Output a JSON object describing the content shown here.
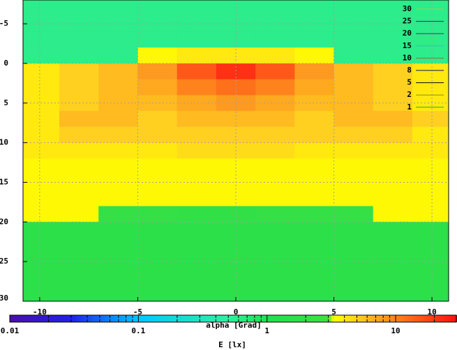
{
  "chart_data": {
    "type": "heatmap",
    "xlabel": "alpha [Grad]",
    "cblabel": "E [lx]",
    "x": [
      -10,
      -8,
      -6,
      -4,
      -2,
      0,
      2,
      4,
      6,
      8,
      10
    ],
    "y": [
      -7,
      -5,
      -3,
      -1,
      1,
      3,
      5,
      7,
      9,
      11,
      13,
      15,
      17,
      19,
      21,
      23,
      25,
      27,
      29
    ],
    "z": [
      [
        0.6,
        0.6,
        0.6,
        0.6,
        0.6,
        0.6,
        0.6,
        0.6,
        0.6,
        0.6,
        0.6
      ],
      [
        0.6,
        0.6,
        0.6,
        0.6,
        0.6,
        0.6,
        0.6,
        0.6,
        0.6,
        0.6,
        0.6
      ],
      [
        0.6,
        0.6,
        0.6,
        0.6,
        0.6,
        0.6,
        0.6,
        0.6,
        0.6,
        0.6,
        0.6
      ],
      [
        0.6,
        0.6,
        0.6,
        3.5,
        4,
        4,
        4,
        3.5,
        0.6,
        0.6,
        0.6
      ],
      [
        4,
        5,
        6,
        8,
        15,
        22,
        15,
        8,
        6,
        5,
        4
      ],
      [
        4,
        5,
        6,
        7,
        10,
        12,
        10,
        7,
        6,
        5,
        4
      ],
      [
        4,
        5,
        6,
        6,
        7,
        8,
        7,
        6,
        6,
        5,
        4
      ],
      [
        4,
        6,
        6,
        5,
        6,
        6,
        6,
        5,
        6,
        6,
        5
      ],
      [
        4,
        5,
        5,
        5,
        5,
        5,
        5,
        5,
        5,
        5,
        4
      ],
      [
        4,
        4,
        4,
        4,
        4.5,
        4.5,
        4.5,
        4,
        4,
        4,
        4
      ],
      [
        3.5,
        3.5,
        3.5,
        3.5,
        3.5,
        3.5,
        3.5,
        3.5,
        3.5,
        3.5,
        3.5
      ],
      [
        3.5,
        3.5,
        3.5,
        3.5,
        3.5,
        3.5,
        3.5,
        3.5,
        3.5,
        3.5,
        3.5
      ],
      [
        3.5,
        3.5,
        3.5,
        3.5,
        3.5,
        3.5,
        3.5,
        3.5,
        3.5,
        3.5,
        3.5
      ],
      [
        3.5,
        3.5,
        2,
        2,
        1.8,
        1.8,
        2,
        2,
        2,
        3.5,
        3.5
      ],
      [
        1.5,
        1.5,
        1.5,
        1.5,
        1.5,
        1.5,
        1.5,
        1.5,
        1.5,
        1.5,
        1.5
      ],
      [
        1.5,
        1.5,
        1.5,
        1.5,
        1.5,
        1.5,
        1.5,
        1.5,
        1.5,
        1.5,
        1.5
      ],
      [
        1.5,
        1.5,
        1.5,
        1.5,
        1.5,
        1.5,
        1.5,
        1.5,
        1.5,
        1.5,
        1.5
      ],
      [
        1.5,
        1.5,
        1.5,
        1.5,
        1.5,
        1.5,
        1.5,
        1.5,
        1.5,
        1.5,
        1.5
      ],
      [
        1.5,
        1.5,
        1.5,
        1.5,
        1.5,
        1.5,
        1.5,
        1.5,
        1.5,
        1.5,
        1.5
      ]
    ],
    "xlim": [
      -10.85,
      10.85
    ],
    "xticks": [
      -10,
      -5,
      0,
      5,
      10
    ],
    "ylim": [
      -8,
      30
    ],
    "yticks": [
      -5,
      0,
      5,
      10,
      15,
      20,
      25,
      30
    ],
    "grid": true,
    "cblim": [
      0.01,
      30
    ],
    "cbticks": [
      0.01,
      0.1,
      1,
      10
    ],
    "cbminorticks": [
      0.02,
      0.03,
      0.04,
      0.05,
      0.06,
      0.07,
      0.08,
      0.09,
      0.2,
      0.3,
      0.4,
      0.5,
      0.6,
      0.7,
      0.8,
      0.9,
      2,
      3,
      4,
      5,
      6,
      7,
      8,
      9,
      20
    ],
    "cblog": true,
    "palette": [
      {
        "value": 0.01,
        "color": "#4a10a8"
      },
      {
        "value": 0.03,
        "color": "#2020e8"
      },
      {
        "value": 0.1,
        "color": "#00c8ff"
      },
      {
        "value": 0.5,
        "color": "#30f0a0"
      },
      {
        "value": 1,
        "color": "#20e050"
      },
      {
        "value": 3,
        "color": "#40e040"
      },
      {
        "value": 3.3,
        "color": "#ffff00"
      },
      {
        "value": 5,
        "color": "#ffd020"
      },
      {
        "value": 8,
        "color": "#ff9a20"
      },
      {
        "value": 30,
        "color": "#ff1010"
      }
    ],
    "contour_levels": [
      {
        "name": "30",
        "color": "#a0d040"
      },
      {
        "name": "25",
        "color": "#2020c0"
      },
      {
        "name": "20",
        "color": "#a000a0"
      },
      {
        "name": "15",
        "color": "#30c0c0"
      },
      {
        "name": "10",
        "color": "#708040"
      },
      {
        "name": "8",
        "color": "#10106a"
      },
      {
        "name": "5",
        "color": "#000000"
      },
      {
        "name": "2",
        "color": "#909000"
      },
      {
        "name": "1",
        "color": "#20b020"
      }
    ]
  }
}
